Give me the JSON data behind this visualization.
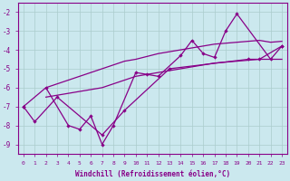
{
  "xlabel": "Windchill (Refroidissement éolien,°C)",
  "xlim": [
    -0.5,
    23.5
  ],
  "ylim": [
    -9.5,
    -1.5
  ],
  "yticks": [
    -9,
    -8,
    -7,
    -6,
    -5,
    -4,
    -3,
    -2
  ],
  "xticks": [
    0,
    1,
    2,
    3,
    4,
    5,
    6,
    7,
    8,
    9,
    10,
    11,
    12,
    13,
    14,
    15,
    16,
    17,
    18,
    19,
    20,
    21,
    22,
    23
  ],
  "background_color": "#cbe8ee",
  "line_color": "#880088",
  "grid_color": "#aacccc",
  "smooth_upper": [
    null,
    null,
    -6.0,
    -5.8,
    -5.6,
    -5.4,
    -5.2,
    -5.0,
    -4.8,
    -4.6,
    -4.5,
    -4.35,
    -4.2,
    -4.1,
    -4.0,
    -3.9,
    -3.8,
    -3.7,
    -3.65,
    -3.6,
    -3.55,
    -3.5,
    -3.6,
    -3.55
  ],
  "smooth_lower": [
    null,
    null,
    -6.5,
    -6.4,
    -6.3,
    -6.2,
    -6.1,
    -6.0,
    -5.8,
    -5.6,
    -5.4,
    -5.3,
    -5.2,
    -5.1,
    -5.0,
    -4.9,
    -4.8,
    -4.7,
    -4.65,
    -4.6,
    -4.55,
    -4.5,
    -4.5,
    -4.5
  ],
  "jagged1": [
    -7.0,
    null,
    -6.0,
    null,
    -8.0,
    -8.2,
    -7.5,
    -9.0,
    -8.0,
    null,
    -5.2,
    -5.3,
    -5.4,
    null,
    -4.3,
    -3.5,
    -4.2,
    -4.4,
    -3.0,
    -2.1,
    null,
    null,
    -4.5,
    -3.8
  ],
  "jagged2": [
    -7.0,
    -7.8,
    null,
    -6.5,
    null,
    null,
    null,
    -8.5,
    null,
    -7.2,
    null,
    null,
    null,
    -5.0,
    null,
    null,
    null,
    null,
    null,
    null,
    -4.5,
    -4.5,
    null,
    -3.8
  ],
  "x_jagged1": [
    0,
    2,
    4,
    5,
    6,
    7,
    8,
    10,
    11,
    12,
    14,
    15,
    16,
    17,
    18,
    19,
    22,
    23
  ],
  "x_jagged2": [
    0,
    1,
    3,
    7,
    9,
    13,
    20,
    21,
    23
  ],
  "data_jagged1": [
    -7.0,
    -6.0,
    -8.0,
    -8.2,
    -7.5,
    -9.0,
    -8.0,
    -5.2,
    -5.3,
    -5.4,
    -4.3,
    -3.5,
    -4.2,
    -4.4,
    -3.0,
    -2.1,
    -4.5,
    -3.8
  ],
  "data_jagged2": [
    -7.0,
    -7.8,
    -6.5,
    -8.5,
    -7.2,
    -5.0,
    -4.5,
    -4.5,
    -3.8
  ],
  "smooth_upper_x": [
    2,
    3,
    4,
    5,
    6,
    7,
    8,
    9,
    10,
    11,
    12,
    13,
    14,
    15,
    16,
    17,
    18,
    19,
    20,
    21,
    22,
    23
  ],
  "smooth_upper_y": [
    -6.0,
    -5.8,
    -5.6,
    -5.4,
    -5.2,
    -5.0,
    -4.8,
    -4.6,
    -4.5,
    -4.35,
    -4.2,
    -4.1,
    -4.0,
    -3.9,
    -3.8,
    -3.7,
    -3.65,
    -3.6,
    -3.55,
    -3.5,
    -3.6,
    -3.55
  ],
  "smooth_lower_x": [
    2,
    3,
    4,
    5,
    6,
    7,
    8,
    9,
    10,
    11,
    12,
    13,
    14,
    15,
    16,
    17,
    18,
    19,
    20,
    21,
    22,
    23
  ],
  "smooth_lower_y": [
    -6.5,
    -6.4,
    -6.3,
    -6.2,
    -6.1,
    -6.0,
    -5.8,
    -5.6,
    -5.4,
    -5.3,
    -5.2,
    -5.1,
    -5.0,
    -4.9,
    -4.8,
    -4.7,
    -4.65,
    -4.6,
    -4.55,
    -4.5,
    -4.5,
    -4.5
  ]
}
